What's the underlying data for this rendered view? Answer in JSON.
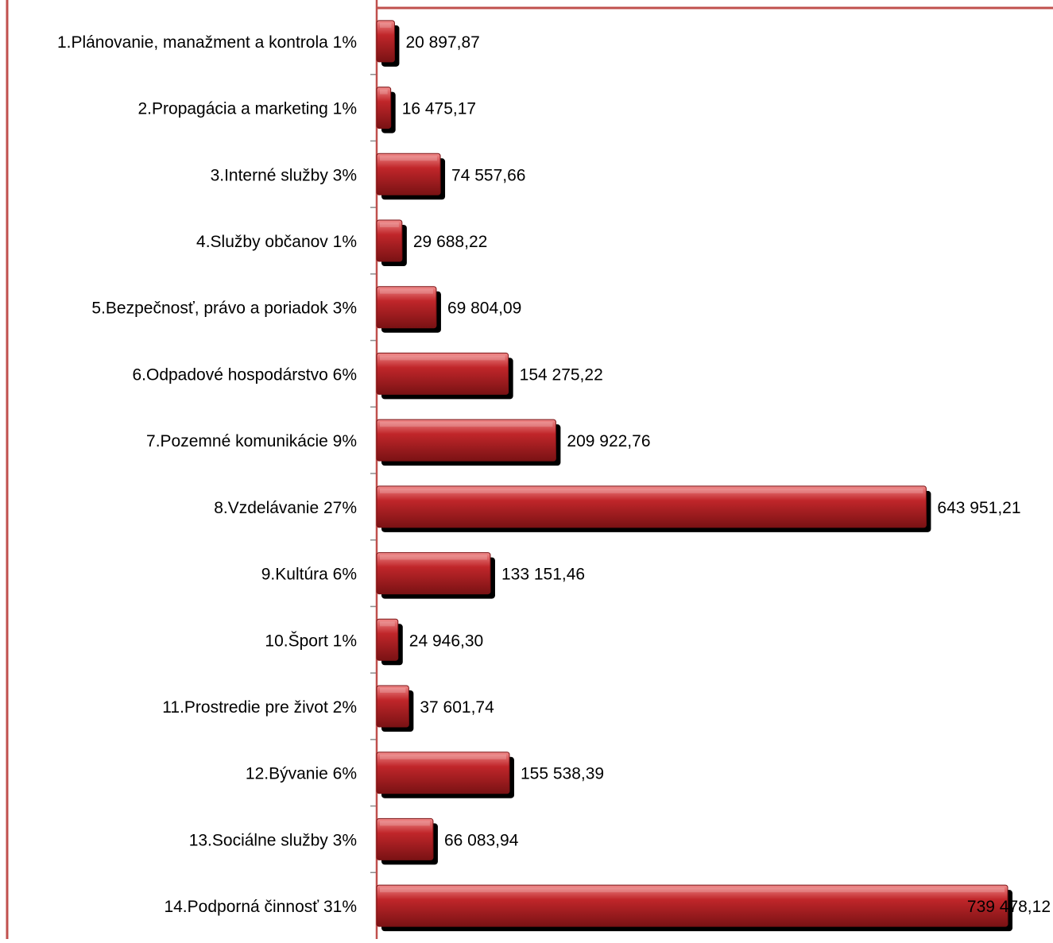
{
  "chart_data": {
    "type": "bar",
    "orientation": "horizontal",
    "categories": [
      "1.Plánovanie, manažment a kontrola 1%",
      "2.Propagácia a marketing 1%",
      "3.Interné služby 3%",
      "4.Služby občanov 1%",
      "5.Bezpečnosť, právo a poriadok 3%",
      "6.Odpadové hospodárstvo 6%",
      "7.Pozemné komunikácie 9%",
      "8.Vzdelávanie 27%",
      "9.Kultúra 6%",
      "10.Šport 1%",
      "11.Prostredie pre život 2%",
      "12.Bývanie 6%",
      "13.Sociálne služby 3%",
      "14.Podporná činnosť 31%"
    ],
    "values": [
      20897.87,
      16475.17,
      74557.66,
      29688.22,
      69804.09,
      154275.22,
      209922.76,
      643951.21,
      133151.46,
      24946.3,
      37601.74,
      155538.39,
      66083.94,
      739478.12
    ],
    "value_labels": [
      "20 897,87",
      "16 475,17",
      "74 557,66",
      "29 688,22",
      "69 804,09",
      "154 275,22",
      "209 922,76",
      "643 951,21",
      "133 151,46",
      "24 946,30",
      "37 601,74",
      "155 538,39",
      "66 083,94",
      "739 478,12"
    ],
    "xlim": [
      0,
      739478.12
    ],
    "grid": false,
    "legend": "none",
    "colors": {
      "bar": "#c0262a",
      "bar_highlight": "#f08b8b",
      "bar_dark": "#7a1214",
      "shadow": "#000000",
      "axis": "#c0504d",
      "tick": "#8c8c8c",
      "text": "#000000"
    }
  }
}
